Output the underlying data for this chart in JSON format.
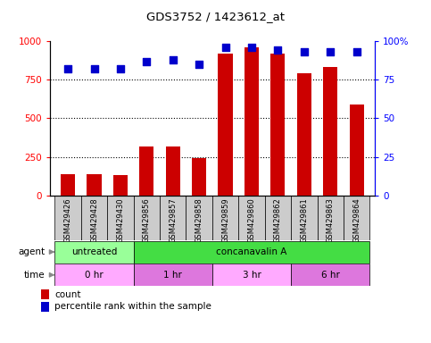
{
  "title": "GDS3752 / 1423612_at",
  "samples": [
    "GSM429426",
    "GSM429428",
    "GSM429430",
    "GSM429856",
    "GSM429857",
    "GSM429858",
    "GSM429859",
    "GSM429860",
    "GSM429862",
    "GSM429861",
    "GSM429863",
    "GSM429864"
  ],
  "counts": [
    140,
    140,
    130,
    320,
    315,
    240,
    920,
    960,
    920,
    790,
    830,
    590
  ],
  "percentile_ranks": [
    82,
    82,
    82,
    87,
    88,
    85,
    96,
    96,
    94,
    93,
    93,
    93
  ],
  "bar_color": "#cc0000",
  "dot_color": "#0000cc",
  "left_ylim": [
    0,
    1000
  ],
  "right_ylim": [
    0,
    100
  ],
  "left_yticks": [
    0,
    250,
    500,
    750,
    1000
  ],
  "right_yticks": [
    0,
    25,
    50,
    75,
    100
  ],
  "right_yticklabels": [
    "0",
    "25",
    "50",
    "75",
    "100%"
  ],
  "grid_values": [
    250,
    500,
    750
  ],
  "agent_groups": [
    {
      "label": "untreated",
      "start": 0,
      "end": 3,
      "color": "#99ff99"
    },
    {
      "label": "concanavalin A",
      "start": 3,
      "end": 12,
      "color": "#44dd44"
    }
  ],
  "time_groups": [
    {
      "label": "0 hr",
      "start": 0,
      "end": 3,
      "color": "#ffaaff"
    },
    {
      "label": "1 hr",
      "start": 3,
      "end": 6,
      "color": "#dd77dd"
    },
    {
      "label": "3 hr",
      "start": 6,
      "end": 9,
      "color": "#ffaaff"
    },
    {
      "label": "6 hr",
      "start": 9,
      "end": 12,
      "color": "#dd77dd"
    }
  ],
  "bar_width": 0.55,
  "dot_size": 35,
  "xtick_bg": "#cccccc"
}
